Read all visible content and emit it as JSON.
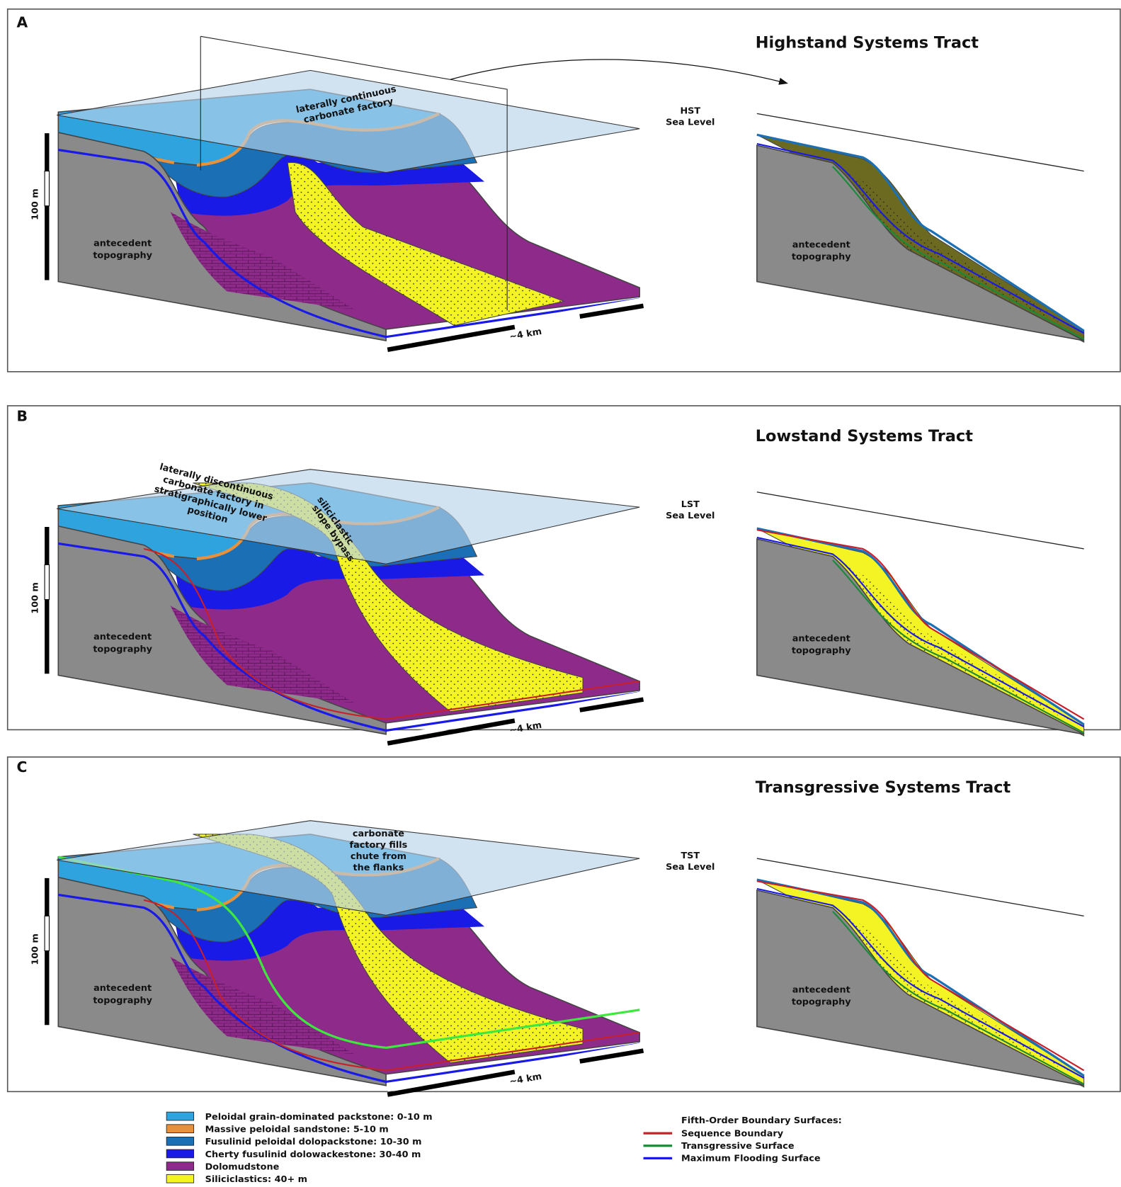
{
  "panels": [
    {
      "label": "A",
      "title": "Highstand Systems Tract",
      "sea_level": [
        "HST",
        "Sea Level"
      ],
      "annotation": [
        "laterally continuous",
        "carbonate factory"
      ],
      "scale_vertical": "100 m",
      "scale_horizontal": "~4 km",
      "block_label": [
        "antecedent",
        "topography"
      ],
      "profile_label": [
        "antecedent",
        "topography"
      ]
    },
    {
      "label": "B",
      "title": "Lowstand Systems Tract",
      "sea_level": [
        "LST",
        "Sea Level"
      ],
      "annotation": [
        "laterally discontinuous",
        "carbonate factory in",
        "stratigraphically lower",
        "position"
      ],
      "annotation_2": [
        "siliciclastic",
        "slope bypass"
      ],
      "scale_vertical": "100 m",
      "scale_horizontal": "~4 km",
      "block_label": [
        "antecedent",
        "topography"
      ],
      "profile_label": [
        "antecedent",
        "topography"
      ]
    },
    {
      "label": "C",
      "title": "Transgressive Systems Tract",
      "sea_level": [
        "TST",
        "Sea Level"
      ],
      "annotation": [
        "carbonate",
        "factory fills",
        "chute from",
        "the flanks"
      ],
      "scale_vertical": "100 m",
      "scale_horizontal": "~4 km",
      "block_label": [
        "antecedent",
        "topography"
      ],
      "profile_label": [
        "antecedent",
        "topography"
      ]
    }
  ],
  "legend": {
    "facies": [
      {
        "label": "Peloidal grain-dominated packstone: 0-10 m",
        "color": "#2fa3de"
      },
      {
        "label": "Massive peloidal sandstone: 5-10 m",
        "color": "#e8903a"
      },
      {
        "label": "Fusulinid peloidal dolopackstone: 10-30 m",
        "color": "#1a6fb5"
      },
      {
        "label": "Cherty fusulinid dolowackestone: 30-40 m",
        "color": "#1a1ae6"
      },
      {
        "label": "Dolomudstone",
        "color": "#8e2a8a"
      },
      {
        "label": "Siliciclastics: 40+ m",
        "color": "#f4f425"
      }
    ],
    "surfaces_title": "Fifth-Order Boundary Surfaces:",
    "surfaces": [
      {
        "label": "Sequence Boundary",
        "color": "#c8202a"
      },
      {
        "label": "Transgressive Surface",
        "color": "#1a8a3a"
      },
      {
        "label": "Maximum Flooding Surface",
        "color": "#1a1ae6"
      }
    ]
  }
}
